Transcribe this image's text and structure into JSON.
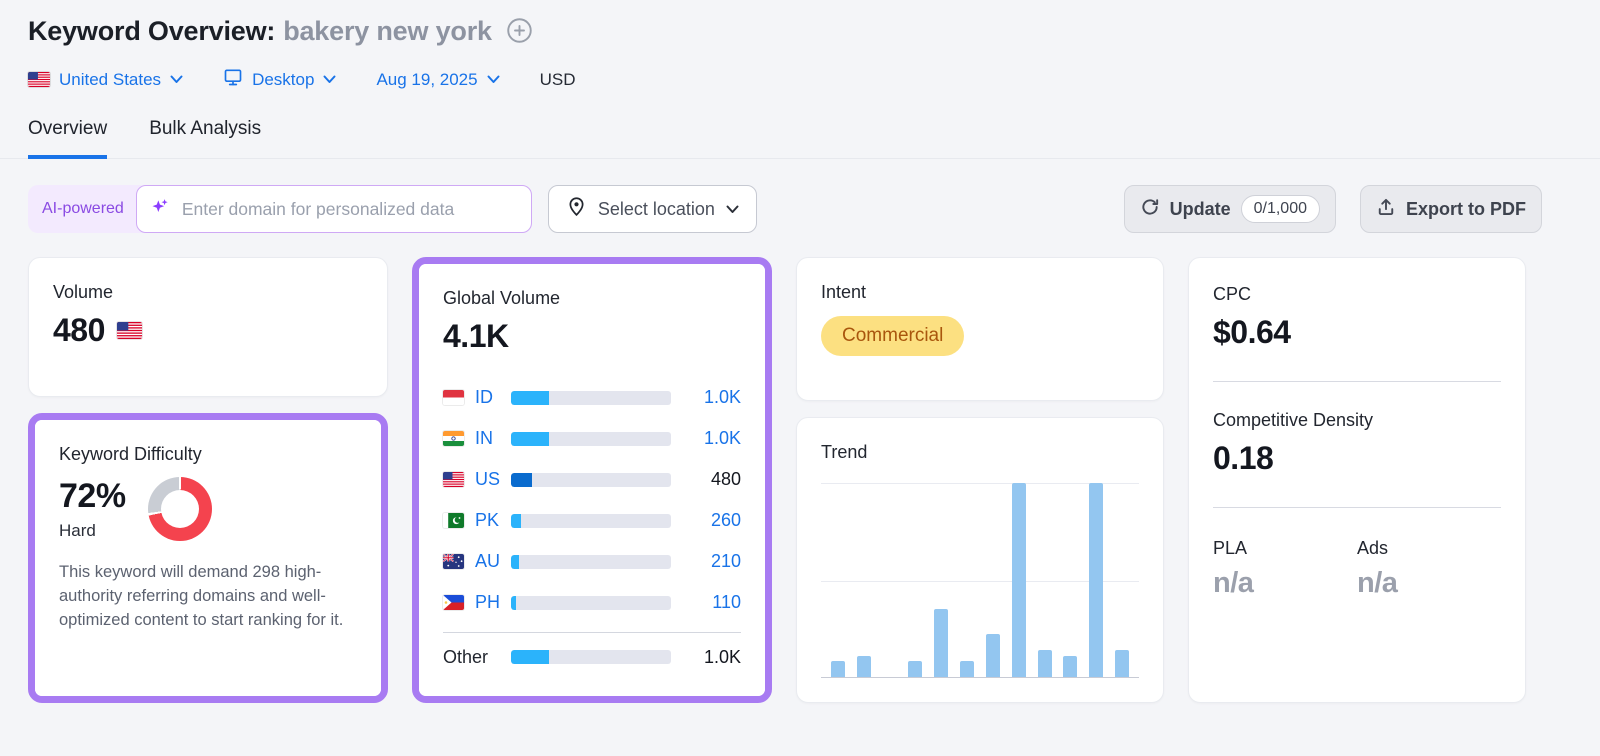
{
  "header": {
    "title": "Keyword Overview:",
    "keyword": "bakery new york"
  },
  "filters": {
    "country": "United States",
    "device": "Desktop",
    "date": "Aug 19, 2025",
    "currency": "USD"
  },
  "tabs": {
    "overview": "Overview",
    "bulk": "Bulk Analysis"
  },
  "toolbar": {
    "ai_badge": "AI-powered",
    "domain_placeholder": "Enter domain for personalized data",
    "domain_value": "",
    "select_location": "Select location",
    "update": "Update",
    "quota": "0/1,000",
    "export": "Export to PDF"
  },
  "volume": {
    "label": "Volume",
    "value": "480"
  },
  "kd": {
    "label": "Keyword Difficulty",
    "value": "72%",
    "percent": 72,
    "severity": "Hard",
    "description": "This keyword will demand 298 high-authority referring domains and well-optimized content to start ranking for it."
  },
  "global_volume": {
    "label": "Global Volume",
    "value": "4.1K",
    "rows": [
      {
        "code": "ID",
        "flag": "id",
        "value": "1.0K",
        "percent": 24,
        "link": true,
        "current": false
      },
      {
        "code": "IN",
        "flag": "in",
        "value": "1.0K",
        "percent": 24,
        "link": true,
        "current": false
      },
      {
        "code": "US",
        "flag": "us",
        "value": "480",
        "percent": 13,
        "link": false,
        "current": true
      },
      {
        "code": "PK",
        "flag": "pk",
        "value": "260",
        "percent": 6,
        "link": true,
        "current": false
      },
      {
        "code": "AU",
        "flag": "au",
        "value": "210",
        "percent": 5,
        "link": true,
        "current": false
      },
      {
        "code": "PH",
        "flag": "ph",
        "value": "110",
        "percent": 3,
        "link": true,
        "current": false
      }
    ],
    "other": {
      "label": "Other",
      "value": "1.0K",
      "percent": 24
    }
  },
  "intent": {
    "label": "Intent",
    "badge": "Commercial"
  },
  "trend": {
    "label": "Trend",
    "values": [
      8,
      11,
      0,
      8,
      35,
      8,
      22,
      100,
      14,
      11,
      100,
      14
    ]
  },
  "cpc": {
    "label": "CPC",
    "value": "$0.64"
  },
  "density": {
    "label": "Competitive Density",
    "value": "0.18"
  },
  "pla": {
    "label": "PLA",
    "value": "n/a"
  },
  "ads": {
    "label": "Ads",
    "value": "n/a"
  },
  "chart_data": {
    "type": "bar",
    "title": "Trend",
    "categories": [
      "",
      "",
      "",
      "",
      "",
      "",
      "",
      "",
      "",
      "",
      "",
      ""
    ],
    "values": [
      8,
      11,
      0,
      8,
      35,
      8,
      22,
      100,
      14,
      11,
      100,
      14
    ],
    "xlabel": "",
    "ylabel": "",
    "ylim": [
      0,
      100
    ],
    "grid": true,
    "legend": false,
    "note": "12 monthly bars, relative search volume, no axis tick labels shown"
  },
  "colors": {
    "accent_purple": "#a87bf2",
    "link_blue": "#1973e8",
    "bar_blue": "#2bb3fb",
    "bar_blue_dark": "#0a6bce",
    "kd_red": "#f4434e",
    "kd_gray": "#c9cdd4",
    "trend_bar": "#93c6f0",
    "intent_bg": "#fce081",
    "intent_text": "#a9560d"
  }
}
